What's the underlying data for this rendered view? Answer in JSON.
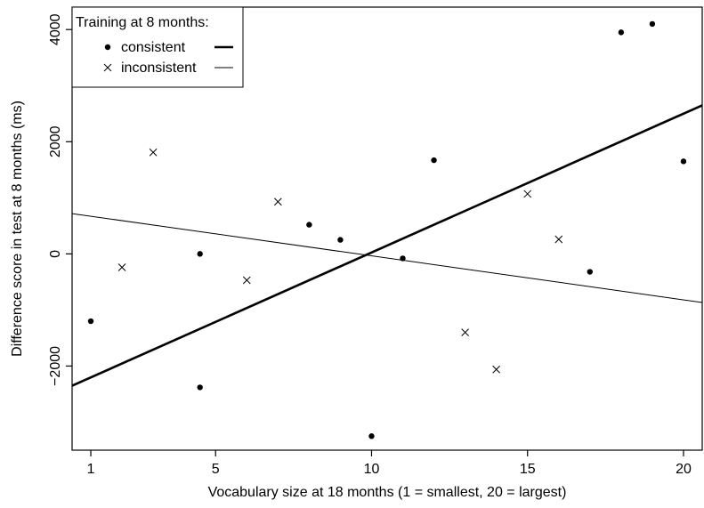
{
  "chart_data": {
    "type": "scatter",
    "title": "",
    "xlabel": "Vocabulary size at 18 months (1 = smallest, 20 = largest)",
    "ylabel": "Difference score in test at 8 months (ms)",
    "xlim": [
      0.4,
      20.6
    ],
    "ylim": [
      -3500,
      4400
    ],
    "x_ticks": [
      1,
      5,
      10,
      15,
      20
    ],
    "x_tick_labels": [
      "1",
      "5",
      "10",
      "15",
      "20"
    ],
    "y_ticks": [
      -2000,
      0,
      2000,
      4000
    ],
    "y_tick_labels": [
      "−2000",
      "0",
      "2000",
      "4000"
    ],
    "grid": false,
    "legend": {
      "title": "Training at 8 months:",
      "position": "top-left"
    },
    "series": [
      {
        "name": "consistent",
        "marker": "filled-circle",
        "line_style": "thick",
        "color": "#000000",
        "points": [
          {
            "x": 1,
            "y": -1200
          },
          {
            "x": 4.5,
            "y": 0
          },
          {
            "x": 4.5,
            "y": -2380
          },
          {
            "x": 8,
            "y": 520
          },
          {
            "x": 9,
            "y": 250
          },
          {
            "x": 10,
            "y": -3250
          },
          {
            "x": 11,
            "y": -80
          },
          {
            "x": 12,
            "y": 1670
          },
          {
            "x": 17,
            "y": -320
          },
          {
            "x": 18,
            "y": 3950
          },
          {
            "x": 19,
            "y": 4100
          },
          {
            "x": 20,
            "y": 1650
          }
        ],
        "fit_line": {
          "intercept": -2450,
          "slope": 247.5
        }
      },
      {
        "name": "inconsistent",
        "marker": "cross",
        "line_style": "thin",
        "color": "#000000",
        "points": [
          {
            "x": 2,
            "y": -240
          },
          {
            "x": 3,
            "y": 1810
          },
          {
            "x": 6,
            "y": -470
          },
          {
            "x": 7,
            "y": 930
          },
          {
            "x": 13,
            "y": -1400
          },
          {
            "x": 14,
            "y": -2060
          },
          {
            "x": 15,
            "y": 1070
          },
          {
            "x": 16,
            "y": 260
          }
        ],
        "fit_line": {
          "intercept": 750,
          "slope": -78.5
        }
      }
    ]
  }
}
